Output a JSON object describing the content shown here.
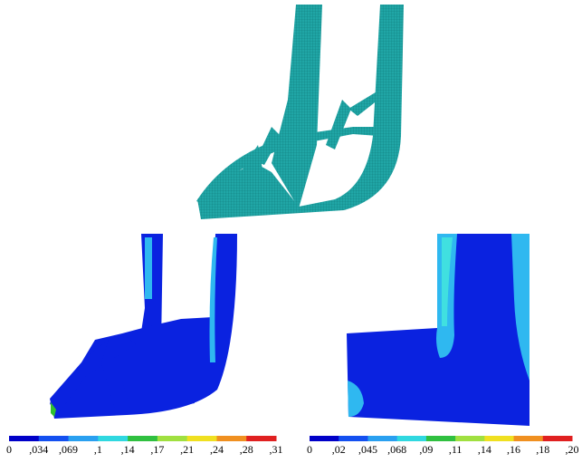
{
  "figure": {
    "colorbars": [
      {
        "labels": [
          "0",
          ",034",
          ",069",
          ",1",
          ",14",
          ",17",
          ",21",
          ",24",
          ",28",
          ",31"
        ]
      },
      {
        "labels": [
          "0",
          ",02",
          ",045",
          ",068",
          ",09",
          ",11",
          ",14",
          ",16",
          ",18",
          ",20"
        ]
      }
    ]
  }
}
